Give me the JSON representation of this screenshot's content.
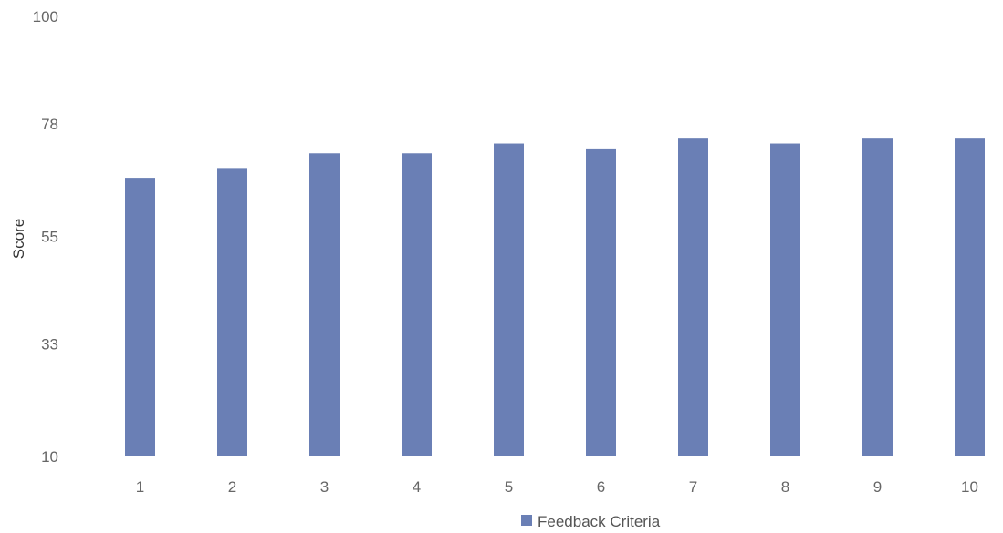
{
  "chart_data": {
    "type": "bar",
    "title": "",
    "xlabel": "",
    "ylabel": "Score",
    "ylim": [
      10,
      100
    ],
    "yticks": [
      10,
      33,
      55,
      78,
      100
    ],
    "categories": [
      "1",
      "2",
      "3",
      "4",
      "5",
      "6",
      "7",
      "8",
      "9",
      "10"
    ],
    "series": [
      {
        "name": "Feedback Criteria",
        "color": "#6a7fb5",
        "values": [
          67,
          69,
          72,
          72,
          74,
          73,
          75,
          74,
          75,
          75
        ]
      }
    ],
    "grid": false,
    "legend": "bottom"
  }
}
